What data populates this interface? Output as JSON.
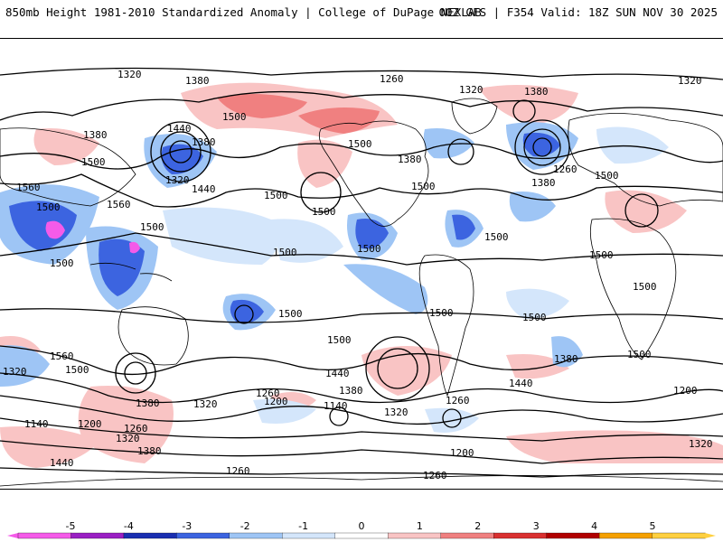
{
  "header": {
    "left_title": "850mb Height 1981-2010 Standardized Anomaly | College of DuPage NEXLAB",
    "right_title": "00Z GFS | F354 Valid: 18Z SUN NOV 30 2025"
  },
  "colorbar": {
    "ticks": [
      "-5",
      "-4",
      "-3",
      "-2",
      "-1",
      "0",
      "1",
      "2",
      "3",
      "4",
      "5"
    ],
    "colors": [
      "#f55be9",
      "#9a1fc3",
      "#1a2fb0",
      "#3c64e0",
      "#9ec5f5",
      "#d4e6fb",
      "#ffffff",
      "#f9c4c4",
      "#f08080",
      "#d93030",
      "#b00000",
      "#f5a000",
      "#ffd040"
    ]
  },
  "contour_labels": {
    "values": [
      "1320",
      "1380",
      "1260",
      "1320",
      "1380",
      "1320",
      "1380",
      "1500",
      "1440",
      "1500",
      "1380",
      "1320",
      "1500",
      "1260",
      "1380",
      "1500",
      "1560",
      "1500",
      "1440",
      "1500",
      "1380",
      "1500",
      "1560",
      "1500",
      "1500",
      "1500",
      "1500",
      "1500",
      "1500",
      "1500",
      "1500",
      "1500",
      "1500",
      "1500",
      "1500",
      "1380",
      "1500",
      "1440",
      "1500",
      "1560",
      "1380",
      "1440",
      "1380",
      "1320",
      "1200",
      "1320",
      "1260",
      "1200",
      "1140",
      "1260",
      "1320",
      "1200",
      "1380",
      "1440",
      "1320",
      "1260",
      "1140",
      "1200",
      "1260",
      "1260",
      "1320"
    ]
  }
}
